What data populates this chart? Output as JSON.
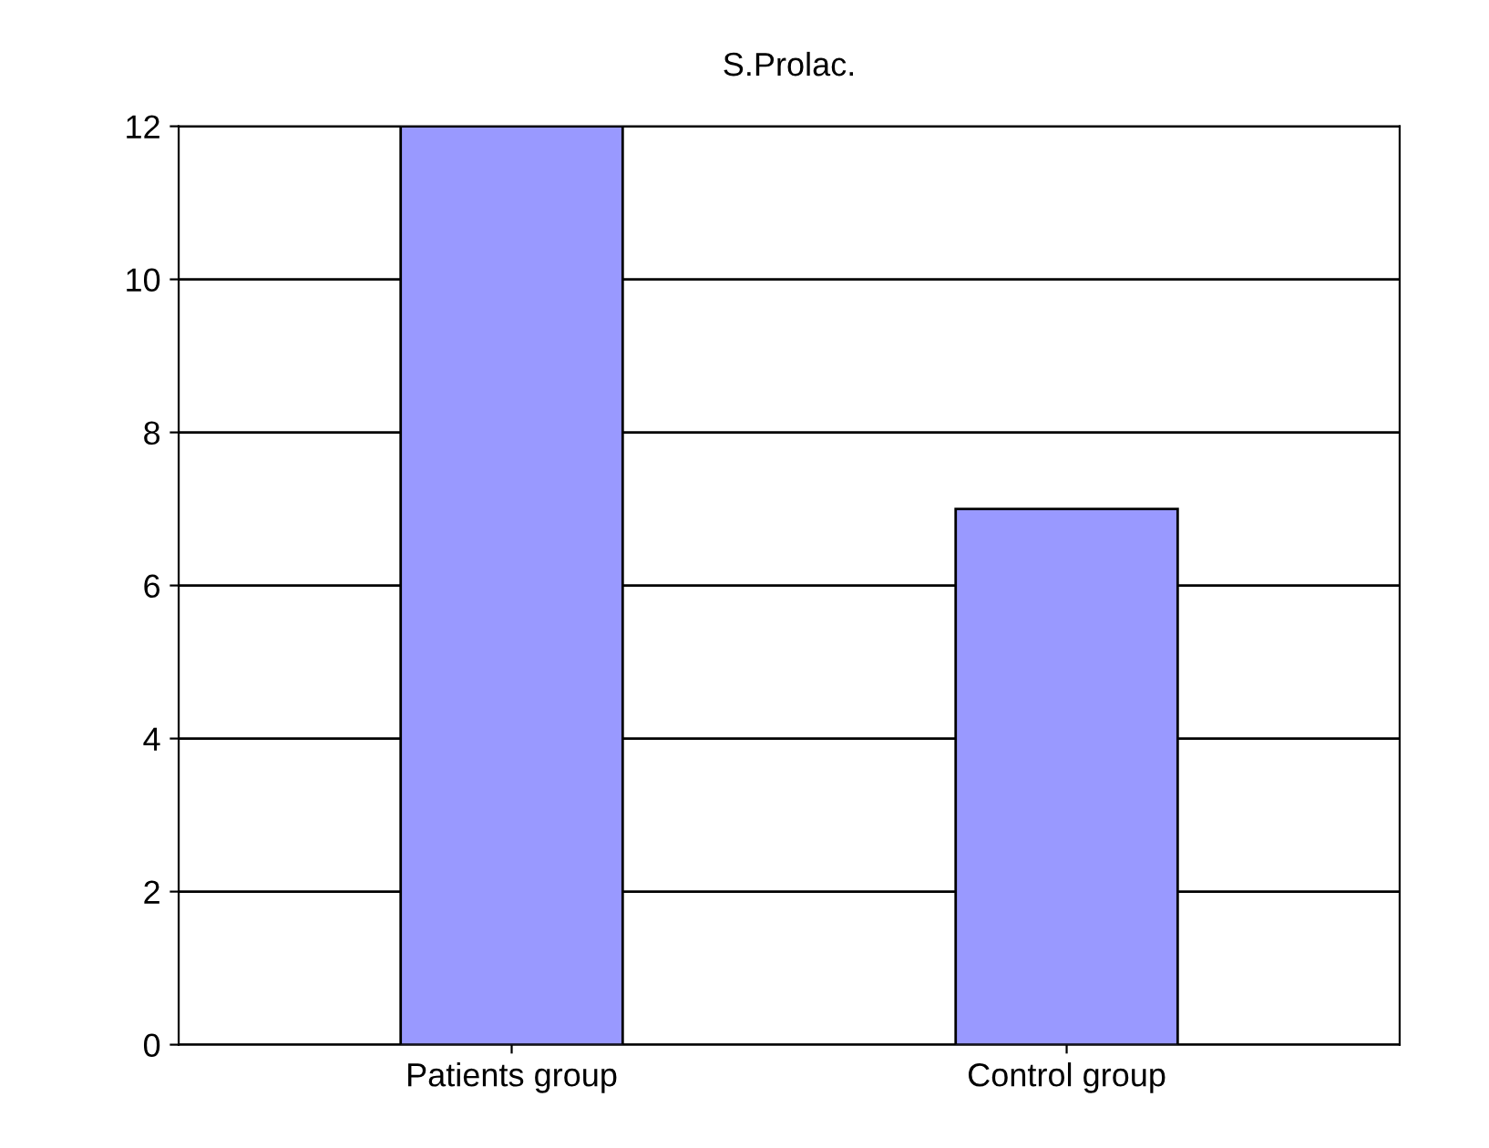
{
  "chart_data": {
    "type": "bar",
    "title": "S.Prolac.",
    "categories": [
      "Patients group",
      "Control group"
    ],
    "values": [
      12,
      7
    ],
    "color": "#9999ff",
    "ylim": [
      0,
      12
    ],
    "yticks": [
      0,
      2,
      4,
      6,
      8,
      10,
      12
    ],
    "grid": "y"
  }
}
